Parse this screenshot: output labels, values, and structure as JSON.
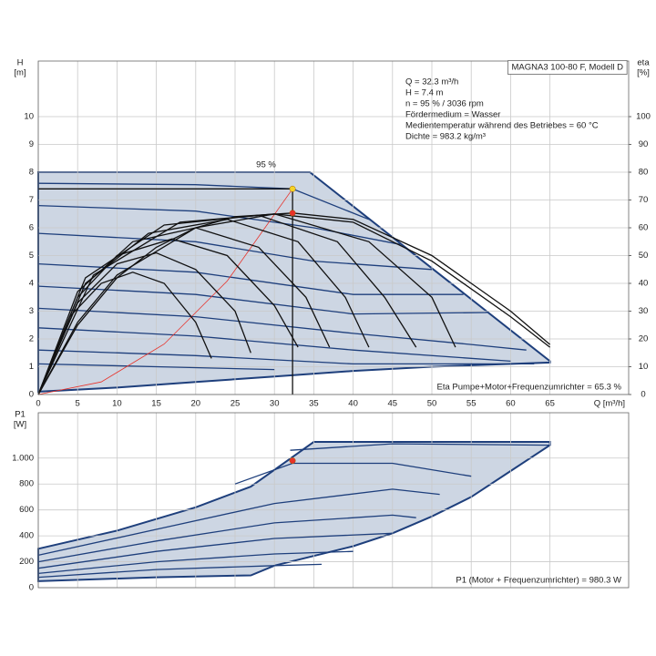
{
  "chart_data": [
    {
      "type": "line",
      "ylabel": "H",
      "yunit": "[m]",
      "y2label": "eta",
      "y2unit": "[%]",
      "xlabel": "Q [m³/h]",
      "xlim": [
        0,
        75
      ],
      "ylim": [
        0,
        12
      ],
      "y2lim": [
        0,
        120
      ],
      "xticks": [
        0,
        5,
        10,
        15,
        20,
        25,
        30,
        35,
        40,
        45,
        50,
        55,
        60,
        65
      ],
      "yticks": [
        0,
        1,
        2,
        3,
        4,
        5,
        6,
        7,
        8,
        9,
        10
      ],
      "y2ticks": [
        0,
        10,
        20,
        30,
        40,
        50,
        60,
        70,
        80,
        90,
        100
      ],
      "grid": true,
      "texts": [
        "MAGNA3 100-80 F, Modell D",
        "Q = 32.3 m³/h",
        "H = 7.4 m",
        "n = 95 % / 3036 rpm",
        "Fördermedium = Wasser",
        "Medientemperatur während des Betriebes = 60 °C",
        "Dichte = 983.2 kg/m³",
        "95 %",
        "Eta Pumpe+Motor+Frequenzumrichter = 65.3 %"
      ],
      "series": [
        {
          "fill": "#cdd6e3",
          "color": "#1e3f7c",
          "x": [
            0,
            34.5,
            65,
            65,
            50,
            40,
            30,
            20,
            10,
            0
          ],
          "values": [
            8,
            8,
            1.2,
            1.15,
            1.0,
            0.85,
            0.65,
            0.45,
            0.25,
            0.1
          ]
        },
        {
          "color": "#1e3f7c",
          "x": [
            0,
            20,
            32.3,
            42
          ],
          "values": [
            7.6,
            7.55,
            7.4,
            6.3
          ]
        },
        {
          "color": "#1e3f7c",
          "x": [
            0,
            20,
            35,
            46
          ],
          "values": [
            6.8,
            6.6,
            6.0,
            5.4
          ]
        },
        {
          "color": "#1e3f7c",
          "x": [
            0,
            20,
            35,
            50
          ],
          "values": [
            5.8,
            5.5,
            4.8,
            4.5
          ]
        },
        {
          "color": "#1e3f7c",
          "x": [
            0,
            20,
            40,
            54
          ],
          "values": [
            4.7,
            4.4,
            3.6,
            3.6
          ]
        },
        {
          "color": "#1e3f7c",
          "x": [
            0,
            20,
            40,
            57
          ],
          "values": [
            3.9,
            3.6,
            2.9,
            2.95
          ]
        },
        {
          "color": "#1e3f7c",
          "x": [
            0,
            20,
            40,
            55,
            62
          ],
          "values": [
            3.1,
            2.8,
            2.2,
            1.8,
            1.6
          ]
        },
        {
          "color": "#1e3f7c",
          "x": [
            0,
            20,
            40,
            60
          ],
          "values": [
            2.4,
            2.1,
            1.6,
            1.2
          ]
        },
        {
          "color": "#1e3f7c",
          "x": [
            0,
            20,
            40,
            63
          ],
          "values": [
            1.6,
            1.4,
            1.1,
            1.1
          ]
        },
        {
          "color": "#1e3f7c",
          "x": [
            0,
            15,
            30
          ],
          "values": [
            1.1,
            1.0,
            0.9
          ]
        },
        {
          "color": "#e8322a",
          "x": [
            0,
            8,
            16,
            24,
            32.3
          ],
          "values": [
            0,
            0.454,
            1.816,
            4.085,
            7.4
          ]
        },
        {
          "color": "#111111",
          "x": [
            0,
            32.3
          ],
          "values": [
            7.4,
            7.4
          ]
        },
        {
          "color": "#111111",
          "x": [
            32.3,
            32.3
          ],
          "values": [
            0,
            7.4
          ]
        },
        {
          "axis": "y2",
          "color": "#111111",
          "x": [
            0,
            4,
            8,
            12,
            16,
            20,
            22
          ],
          "values": [
            0,
            28,
            40,
            44,
            40,
            26,
            13
          ]
        },
        {
          "axis": "y2",
          "color": "#111111",
          "x": [
            0,
            5,
            10,
            15,
            20,
            25,
            27
          ],
          "values": [
            0,
            33,
            47,
            51,
            45,
            30,
            15
          ]
        },
        {
          "axis": "y2",
          "color": "#111111",
          "x": [
            0,
            5,
            10,
            17,
            24,
            30,
            33
          ],
          "values": [
            0,
            35,
            50,
            56,
            50,
            32,
            17
          ]
        },
        {
          "axis": "y2",
          "color": "#111111",
          "x": [
            0,
            5,
            12,
            20,
            28,
            34,
            37
          ],
          "values": [
            0,
            37,
            55,
            60,
            53,
            35,
            17
          ]
        },
        {
          "axis": "y2",
          "color": "#111111",
          "x": [
            0,
            6,
            14,
            24,
            33,
            39,
            42
          ],
          "values": [
            0,
            40,
            58,
            63,
            55,
            35,
            17
          ]
        },
        {
          "axis": "y2",
          "color": "#111111",
          "x": [
            0,
            6,
            16,
            28,
            38,
            44,
            48
          ],
          "values": [
            0,
            42,
            61,
            64.5,
            55,
            35,
            17
          ]
        },
        {
          "axis": "y2",
          "color": "#111111",
          "x": [
            0,
            7,
            18,
            30,
            42,
            50,
            53
          ],
          "values": [
            0,
            43,
            62,
            65,
            55,
            35,
            17
          ]
        },
        {
          "axis": "y2",
          "color": "#111111",
          "x": [
            0,
            5,
            10,
            15,
            20,
            25,
            32.3,
            40,
            50,
            60,
            65
          ],
          "values": [
            0,
            25,
            42,
            53,
            60,
            64,
            65.3,
            63,
            50,
            30,
            18
          ]
        },
        {
          "axis": "y2",
          "color": "#111111",
          "x": [
            0,
            5,
            10,
            20,
            30,
            40,
            50,
            60,
            65
          ],
          "values": [
            0,
            26,
            43,
            60,
            65,
            62,
            48,
            28,
            17
          ]
        },
        {
          "marker": true,
          "color": "#f5d327",
          "x": [
            32.3
          ],
          "values": [
            7.4
          ]
        },
        {
          "marker": true,
          "axis": "y2",
          "color": "#e8322a",
          "x": [
            32.3
          ],
          "values": [
            65.3
          ]
        }
      ]
    },
    {
      "type": "line",
      "ylabel": "P1",
      "yunit": "[W]",
      "xlim": [
        0,
        75
      ],
      "ylim": [
        0,
        1350
      ],
      "xticks": [
        0,
        5,
        10,
        15,
        20,
        25,
        30,
        35,
        40,
        45,
        50,
        55,
        60,
        65
      ],
      "xtick_labels": false,
      "yticks": [
        0,
        200,
        400,
        600,
        800,
        {
          "value": 1000,
          "label": "1.000"
        }
      ],
      "grid": true,
      "texts": [
        "P1 (Motor + Frequenzumrichter) = 980.3 W"
      ],
      "series": [
        {
          "fill": "#cdd6e3",
          "color": "#1e3f7c",
          "x": [
            0,
            10,
            20,
            27,
            35,
            65,
            65,
            60,
            55,
            50,
            45,
            40,
            30,
            27,
            15,
            0
          ],
          "values": [
            300,
            440,
            620,
            780,
            1125,
            1125,
            1100,
            900,
            700,
            550,
            420,
            320,
            170,
            95,
            80,
            50
          ]
        },
        {
          "color": "#1e3f7c",
          "x": [
            32,
            45,
            65
          ],
          "values": [
            1060,
            1110,
            1100
          ]
        },
        {
          "color": "#1e3f7c",
          "x": [
            25,
            32.3,
            45,
            55
          ],
          "values": [
            800,
            960,
            960,
            860
          ]
        },
        {
          "color": "#1e3f7c",
          "x": [
            0,
            15,
            30,
            45,
            51
          ],
          "values": [
            250,
            450,
            650,
            760,
            720
          ]
        },
        {
          "color": "#1e3f7c",
          "x": [
            0,
            15,
            30,
            45,
            48
          ],
          "values": [
            200,
            360,
            500,
            560,
            540
          ]
        },
        {
          "color": "#1e3f7c",
          "x": [
            0,
            15,
            30,
            45
          ],
          "values": [
            150,
            280,
            380,
            420
          ]
        },
        {
          "color": "#1e3f7c",
          "x": [
            0,
            15,
            30,
            40
          ],
          "values": [
            110,
            200,
            260,
            280
          ]
        },
        {
          "color": "#1e3f7c",
          "x": [
            0,
            15,
            30,
            36
          ],
          "values": [
            80,
            140,
            170,
            180
          ]
        },
        {
          "marker": true,
          "color": "#e8322a",
          "x": [
            32.3
          ],
          "values": [
            980.3
          ]
        }
      ]
    }
  ]
}
